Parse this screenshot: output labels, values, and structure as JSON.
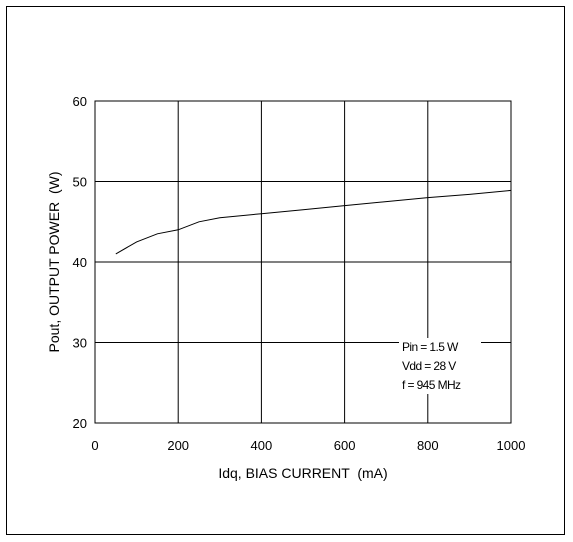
{
  "chart_data": {
    "type": "line",
    "xlabel": "Idq, BIAS CURRENT  (mA)",
    "ylabel": "Pout, OUTPUT POWER  (W)",
    "xlim": [
      0,
      1000
    ],
    "ylim": [
      20,
      60
    ],
    "xticks": [
      "0",
      "200",
      "400",
      "600",
      "800",
      "1000"
    ],
    "yticks": [
      "20",
      "30",
      "40",
      "50",
      "60"
    ],
    "grid": true,
    "series": [
      {
        "x": [
          50,
          100,
          150,
          200,
          250,
          300,
          400,
          500,
          600,
          700,
          800,
          900,
          1000
        ],
        "values": [
          41.0,
          42.5,
          43.5,
          44.0,
          45.0,
          45.5,
          46.0,
          46.5,
          47.0,
          47.5,
          48.0,
          48.4,
          48.9
        ]
      }
    ],
    "annotations": [
      "Pin = 1.5 W",
      "Vdd = 28 V",
      "f = 945 MHz"
    ],
    "colors": {
      "line": "#000000",
      "grid": "#000000",
      "background": "#ffffff"
    }
  }
}
